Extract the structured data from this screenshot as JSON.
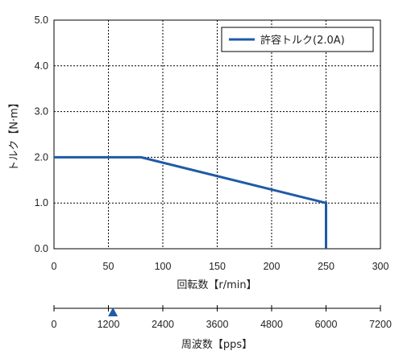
{
  "chart_data": {
    "type": "line",
    "xlabel": "回転数【r/min】",
    "ylabel": "トルク【N·m】",
    "xlim": [
      0,
      300
    ],
    "ylim": [
      0,
      5.0
    ],
    "x_ticks": [
      "0",
      "50",
      "100",
      "150",
      "200",
      "250",
      "300"
    ],
    "y_ticks": [
      "0.0",
      "1.0",
      "2.0",
      "3.0",
      "4.0",
      "5.0"
    ],
    "grid": true,
    "legend_position": "top-right",
    "series": [
      {
        "name": "許容トルク(2.0A)",
        "color": "#1f5aa6",
        "x": [
          0,
          80,
          250,
          250
        ],
        "y": [
          2.0,
          2.0,
          1.0,
          0.0
        ]
      }
    ],
    "secondary_axis": {
      "xlabel": "周波数【pps】",
      "ticks": [
        "0",
        "1200",
        "2400",
        "3600",
        "4800",
        "6000",
        "7200"
      ],
      "xlim": [
        0,
        7200
      ],
      "marker_value": 1300,
      "marker_color": "#1f5aa6",
      "marker_shape": "triangle-up"
    }
  }
}
